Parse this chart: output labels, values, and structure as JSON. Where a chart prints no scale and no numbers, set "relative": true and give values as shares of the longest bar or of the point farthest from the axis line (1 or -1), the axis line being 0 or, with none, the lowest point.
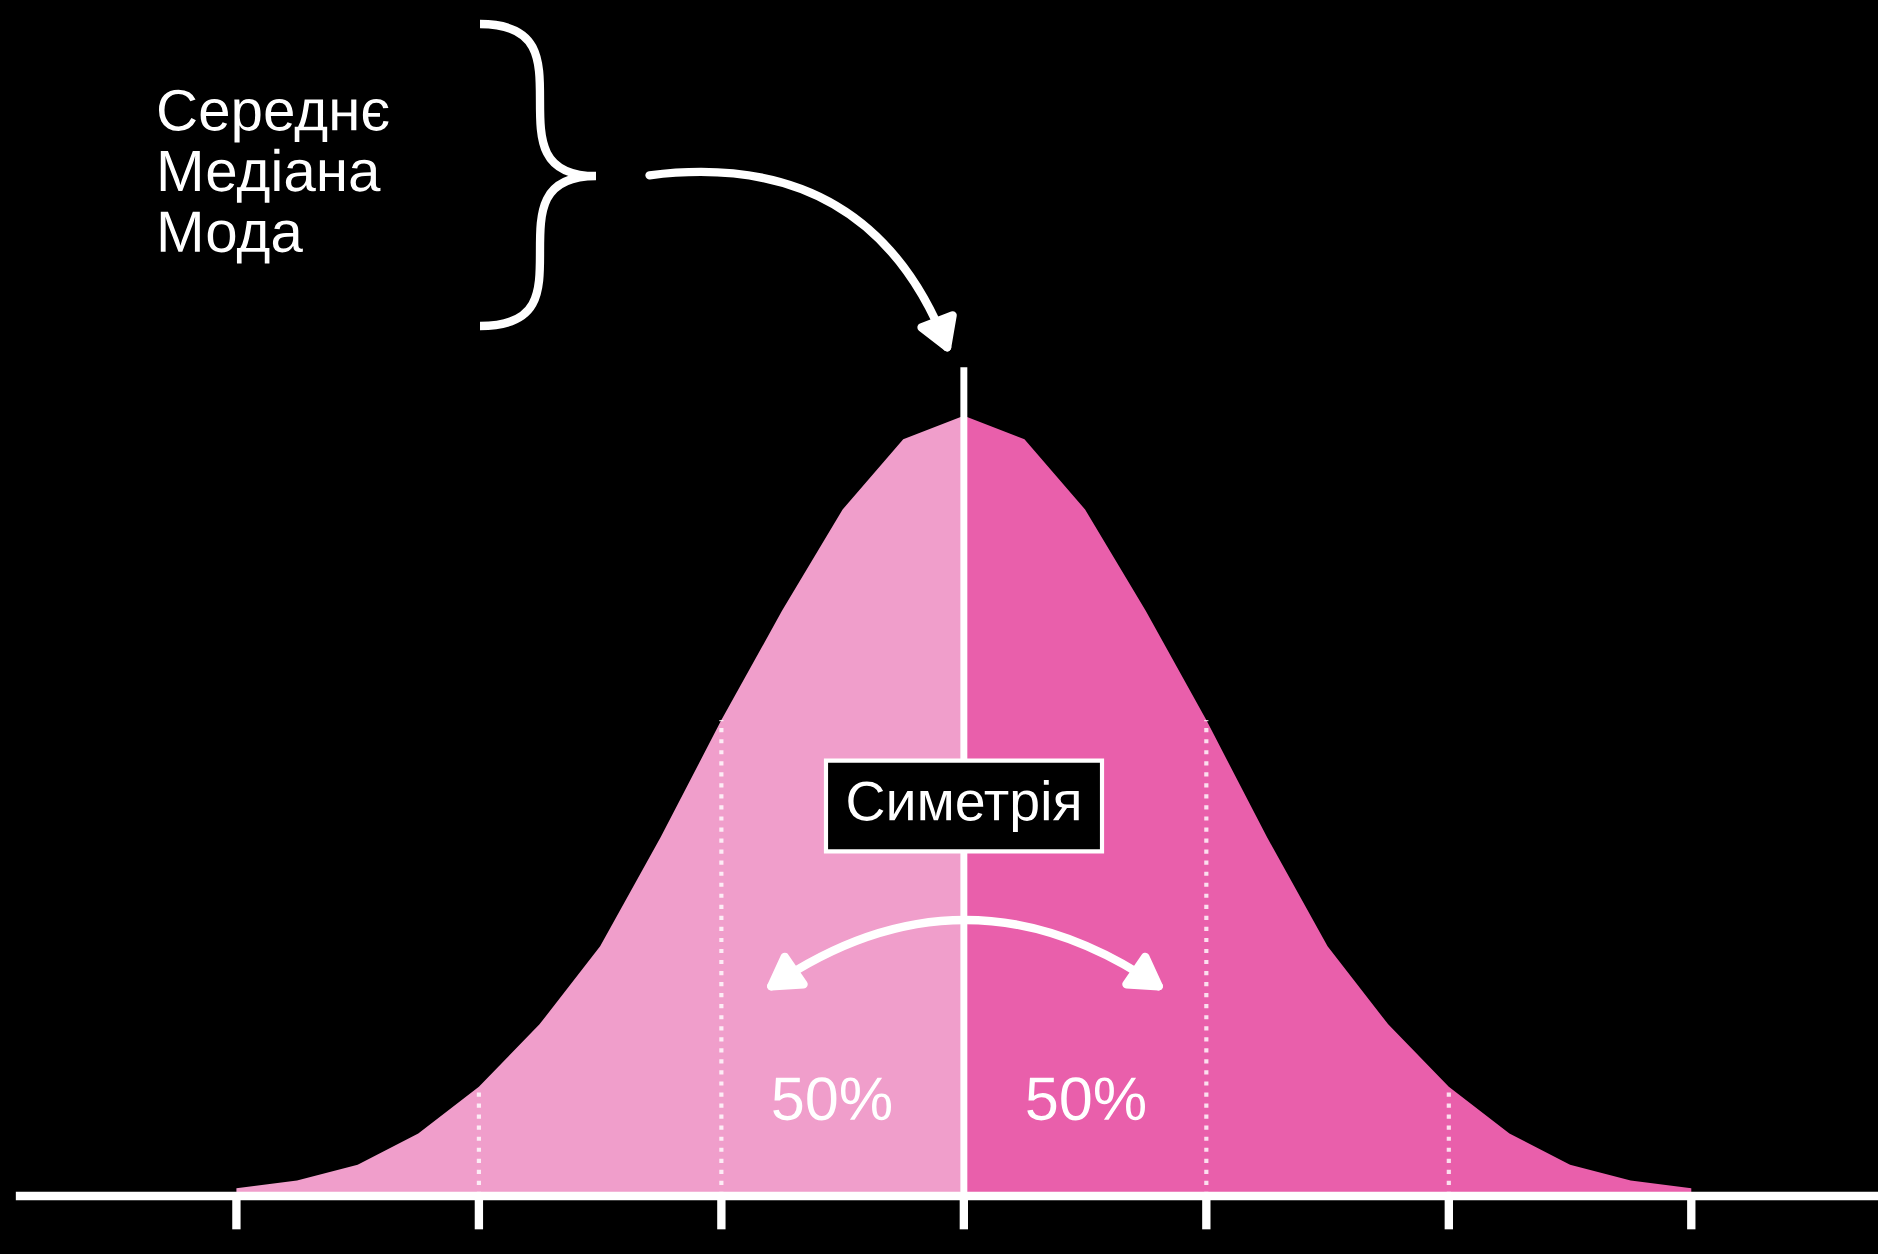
{
  "chart_data": {
    "type": "area",
    "relative": true,
    "categories": [
      null,
      null,
      null,
      null,
      null,
      null,
      null,
      null,
      null,
      null,
      null,
      null,
      null,
      null,
      null,
      null,
      null,
      null,
      null,
      null,
      null,
      null,
      null,
      null,
      null
    ],
    "series": [
      {
        "color": "#f09ecb",
        "values": [
          0.01,
          0.02,
          0.04,
          0.08,
          0.14,
          0.22,
          0.32,
          0.46,
          0.61,
          0.75,
          0.88,
          0.97,
          1.0,
          null,
          null,
          null,
          null,
          null,
          null,
          null,
          null,
          null,
          null,
          null,
          null
        ]
      },
      {
        "color": "#e95fab",
        "values": [
          null,
          null,
          null,
          null,
          null,
          null,
          null,
          null,
          null,
          null,
          null,
          null,
          1.0,
          0.97,
          0.88,
          0.75,
          0.61,
          0.46,
          0.32,
          0.22,
          0.14,
          0.08,
          0.04,
          0.02,
          0.01
        ]
      }
    ],
    "annotations": [
      "Середнє\nМедіана\nМода",
      "Симетрія",
      "50%",
      "50%"
    ],
    "grid": false,
    "legend": false
  }
}
